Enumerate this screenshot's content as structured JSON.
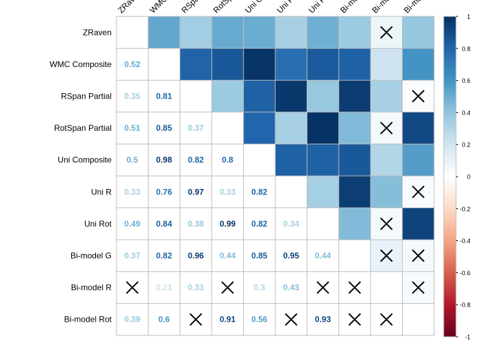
{
  "chart_data": {
    "type": "heatmap",
    "title": "",
    "variables": [
      "ZRaven",
      "WMC Composite",
      "RSpan Partial",
      "RotSpan Partial",
      "Uni Composite",
      "Uni R",
      "Uni Rot",
      "Bi-model G",
      "Bi-model R",
      "Bi-model Rot"
    ],
    "column_labels": [
      "ZRaven",
      "WMC",
      "RSpan",
      "RotSp",
      "Uni C",
      "Uni R",
      "Uni R",
      "Bi-mo",
      "Bi-mo",
      "Bi-mo"
    ],
    "lower_triangle": "numbers",
    "upper_triangle": "colored squares",
    "values": [
      [
        null,
        0.52,
        0.35,
        0.51,
        0.5,
        0.33,
        0.49,
        0.37,
        0.08,
        0.39
      ],
      [
        0.52,
        null,
        0.81,
        0.85,
        0.98,
        0.76,
        0.84,
        0.82,
        0.21,
        0.6
      ],
      [
        0.35,
        0.81,
        null,
        0.37,
        0.82,
        0.97,
        0.38,
        0.96,
        0.33,
        0.02
      ],
      [
        0.51,
        0.85,
        0.37,
        null,
        0.8,
        0.33,
        0.99,
        0.44,
        0.05,
        0.91
      ],
      [
        0.5,
        0.98,
        0.82,
        0.8,
        null,
        0.82,
        0.82,
        0.85,
        0.3,
        0.56
      ],
      [
        0.33,
        0.76,
        0.97,
        0.33,
        0.82,
        null,
        0.34,
        0.95,
        0.43,
        0.03
      ],
      [
        0.49,
        0.84,
        0.38,
        0.99,
        0.82,
        0.34,
        null,
        0.44,
        0.05,
        0.93
      ],
      [
        0.37,
        0.82,
        0.96,
        0.44,
        0.85,
        0.95,
        0.44,
        null,
        0.1,
        0.05
      ],
      [
        0.08,
        0.21,
        0.33,
        0.05,
        0.3,
        0.43,
        0.05,
        0.1,
        null,
        0.04
      ],
      [
        0.39,
        0.6,
        0.02,
        0.91,
        0.56,
        0.03,
        0.93,
        0.05,
        0.04,
        null
      ]
    ],
    "crossed": [
      [
        0,
        8
      ],
      [
        2,
        9
      ],
      [
        3,
        8
      ],
      [
        5,
        9
      ],
      [
        6,
        8
      ],
      [
        7,
        8
      ],
      [
        7,
        9
      ],
      [
        8,
        9
      ],
      [
        8,
        0
      ],
      [
        8,
        3
      ],
      [
        8,
        6
      ],
      [
        8,
        7
      ],
      [
        9,
        2
      ],
      [
        9,
        5
      ],
      [
        9,
        7
      ],
      [
        9,
        8
      ]
    ],
    "colorbar": {
      "min": -1,
      "max": 1,
      "ticks": [
        "1",
        "0.8",
        "0.6",
        "0.4",
        "0.2",
        "0",
        "-0.2",
        "-0.4",
        "-0.6",
        "-0.8",
        "-1"
      ],
      "colors": [
        "#67001F",
        "#B2182B",
        "#D6604D",
        "#F4A582",
        "#FDDBC7",
        "#FFFFFF",
        "#D1E5F0",
        "#92C5DE",
        "#4393C3",
        "#2166AC",
        "#053061"
      ]
    }
  }
}
